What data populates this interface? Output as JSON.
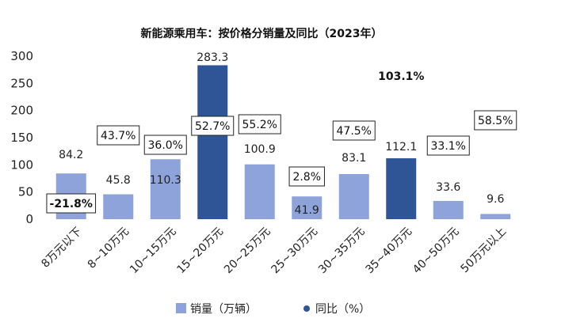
{
  "chart_data": {
    "type": "bar",
    "title": "新能源乘用车：按价格分销量及同比（2023年）",
    "categories": [
      "8万元以下",
      "8~10万元",
      "10~15万元",
      "15~20万元",
      "20~25万元",
      "25~30万元",
      "30~35万元",
      "35~40万元",
      "40~50万元",
      "50万元以上"
    ],
    "series": [
      {
        "name": "销量（万辆）",
        "values": [
          84.2,
          45.8,
          110.3,
          283.3,
          100.9,
          41.9,
          83.1,
          112.1,
          33.6,
          9.6
        ],
        "value_labels": [
          "84.2",
          "45.8",
          "110.3",
          "283.3",
          "100.9",
          "41.9",
          "83.1",
          "112.1",
          "33.6",
          "9.6"
        ]
      },
      {
        "name": "同比（%）",
        "values": [
          -21.8,
          43.7,
          36.0,
          52.7,
          55.2,
          2.8,
          47.5,
          103.1,
          33.1,
          58.5
        ],
        "value_labels": [
          "-21.8%",
          "43.7%",
          "36.0%",
          "52.7%",
          "55.2%",
          "2.8%",
          "47.5%",
          "103.1%",
          "33.1%",
          "58.5%"
        ]
      }
    ],
    "highlighted_categories": [
      "15~20万元",
      "35~40万元"
    ],
    "ylim": [
      0,
      300
    ],
    "yticks": [
      "0",
      "50",
      "100",
      "150",
      "200",
      "250",
      "300"
    ],
    "ytick_values": [
      0,
      50,
      100,
      150,
      200,
      250,
      300
    ],
    "legend_position": "bottom",
    "colors": {
      "bar": "#8EA3D9",
      "bar_highlight": "#2F5597",
      "yoy_negative": "#E0201B",
      "yoy_max": "#70AD47",
      "text": "#222222"
    }
  }
}
